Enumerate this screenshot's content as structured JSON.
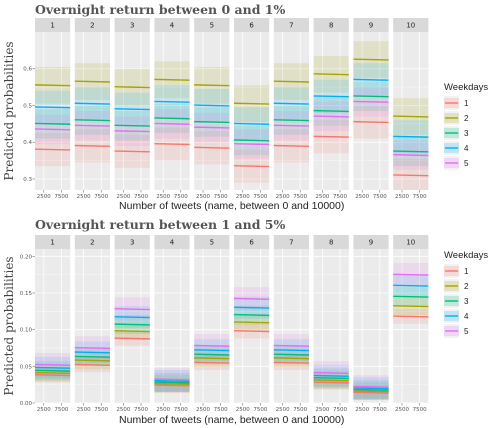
{
  "chart_data": [
    {
      "type": "line",
      "title": "Overnight return between 0 and 1%",
      "xlabel": "Number of tweets (name, between 0 and 10000)",
      "ylabel": "Predicted probabilities",
      "facets": [
        "1",
        "2",
        "3",
        "4",
        "5",
        "6",
        "7",
        "8",
        "9",
        "10"
      ],
      "x_ticks": [
        "2500",
        "7500"
      ],
      "ylim": [
        0.27,
        0.7
      ],
      "y_ticks": [
        0.3,
        0.4,
        0.5,
        0.6
      ],
      "y_tick_labels": [
        "0.3",
        "0.4",
        "0.5",
        "0.6"
      ],
      "series_names": [
        "1",
        "2",
        "3",
        "4",
        "5"
      ],
      "values": {
        "1": [
          0.38,
          0.555,
          0.45,
          0.495,
          0.435
        ],
        "2": [
          0.39,
          0.565,
          0.46,
          0.505,
          0.445
        ],
        "3": [
          0.375,
          0.55,
          0.445,
          0.49,
          0.43
        ],
        "4": [
          0.395,
          0.57,
          0.465,
          0.51,
          0.45
        ],
        "5": [
          0.385,
          0.555,
          0.455,
          0.5,
          0.44
        ],
        "6": [
          0.335,
          0.505,
          0.405,
          0.45,
          0.395
        ],
        "7": [
          0.39,
          0.565,
          0.46,
          0.505,
          0.445
        ],
        "8": [
          0.415,
          0.585,
          0.485,
          0.525,
          0.47
        ],
        "9": [
          0.455,
          0.625,
          0.525,
          0.57,
          0.51
        ],
        "10": [
          0.31,
          0.47,
          0.375,
          0.415,
          0.365
        ]
      },
      "band_halfwidth": [
        0.045,
        0.05,
        0.04,
        0.045,
        0.04
      ]
    },
    {
      "type": "line",
      "title": "Overnight return between 1 and 5%",
      "xlabel": "Number of tweets (name, between 0 and 10000)",
      "ylabel": "Predicted probabilities",
      "facets": [
        "1",
        "2",
        "3",
        "4",
        "5",
        "6",
        "7",
        "8",
        "9",
        "10"
      ],
      "x_ticks": [
        "2500",
        "7500"
      ],
      "ylim": [
        0.0,
        0.21
      ],
      "y_ticks": [
        0.0,
        0.05,
        0.1,
        0.15,
        0.2
      ],
      "y_tick_labels": [
        "0.00",
        "0.05",
        "0.10",
        "0.15",
        "0.20"
      ],
      "series_names": [
        "1",
        "2",
        "3",
        "4",
        "5"
      ],
      "values": {
        "1": [
          0.038,
          0.041,
          0.044,
          0.048,
          0.052
        ],
        "2": [
          0.052,
          0.058,
          0.063,
          0.069,
          0.075
        ],
        "3": [
          0.088,
          0.098,
          0.107,
          0.117,
          0.128
        ],
        "4": [
          0.024,
          0.026,
          0.028,
          0.03,
          0.032
        ],
        "5": [
          0.055,
          0.061,
          0.066,
          0.072,
          0.078
        ],
        "6": [
          0.098,
          0.11,
          0.12,
          0.13,
          0.142
        ],
        "7": [
          0.055,
          0.061,
          0.066,
          0.072,
          0.078
        ],
        "8": [
          0.028,
          0.031,
          0.034,
          0.037,
          0.041
        ],
        "9": [
          0.014,
          0.016,
          0.018,
          0.02,
          0.022
        ],
        "10": [
          0.118,
          0.132,
          0.145,
          0.16,
          0.175
        ]
      },
      "band_halfwidth": [
        0.01,
        0.012,
        0.013,
        0.015,
        0.016
      ]
    }
  ],
  "legend": {
    "title": "Weekdays",
    "items": [
      {
        "label": "1",
        "color": "#F8766D"
      },
      {
        "label": "2",
        "color": "#A3A500"
      },
      {
        "label": "3",
        "color": "#00BF7D"
      },
      {
        "label": "4",
        "color": "#00B0F6"
      },
      {
        "label": "5",
        "color": "#E76BF3"
      }
    ]
  },
  "colors": {
    "panel_background": "#EBEBEB",
    "strip_background": "#D9D9D9",
    "grid": "#FFFFFF"
  }
}
